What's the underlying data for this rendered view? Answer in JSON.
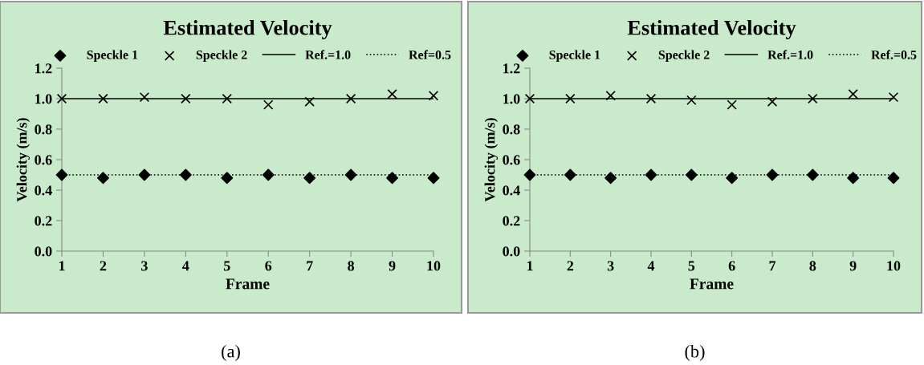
{
  "chart_data": [
    {
      "type": "scatter",
      "title": "Estimated Velocity",
      "xlabel": "Frame",
      "ylabel": "Velocity (m/s)",
      "x": [
        1,
        2,
        3,
        4,
        5,
        6,
        7,
        8,
        9,
        10
      ],
      "xlim": [
        1,
        10
      ],
      "xticks": [
        1,
        2,
        3,
        4,
        5,
        6,
        7,
        8,
        9,
        10
      ],
      "ylim": [
        0,
        1.2
      ],
      "yticks": [
        {
          "value": 0,
          "label": "0.0"
        },
        {
          "value": 0.2,
          "label": "0.2"
        },
        {
          "value": 0.4,
          "label": "0.4"
        },
        {
          "value": 0.6,
          "label": "0.6"
        },
        {
          "value": 0.8,
          "label": "0.8"
        },
        {
          "value": 1.0,
          "label": "1.0"
        },
        {
          "value": 1.2,
          "label": "1.2"
        }
      ],
      "legend": "top",
      "grid": false,
      "annotations": [
        "(a)"
      ],
      "series": [
        {
          "name": "Speckle 1",
          "type": "scatter",
          "marker": "diamond",
          "color": "#000000",
          "values": [
            0.5,
            0.48,
            0.5,
            0.5,
            0.48,
            0.5,
            0.48,
            0.5,
            0.48,
            0.48
          ]
        },
        {
          "name": "Speckle 2",
          "type": "scatter",
          "marker": "cross",
          "color": "#000000",
          "values": [
            1.0,
            1.0,
            1.01,
            1.0,
            1.0,
            0.96,
            0.98,
            1.0,
            1.03,
            1.02
          ]
        },
        {
          "name": "Ref.=1.0",
          "type": "line",
          "marker": "none",
          "line_style": "solid",
          "color": "#000000",
          "values": [
            1.0,
            1.0,
            1.0,
            1.0,
            1.0,
            1.0,
            1.0,
            1.0,
            1.0,
            1.0
          ]
        },
        {
          "name": "Ref=0.5",
          "type": "line",
          "marker": "none",
          "line_style": "dotted",
          "color": "#000000",
          "values": [
            0.5,
            0.5,
            0.5,
            0.5,
            0.5,
            0.5,
            0.5,
            0.5,
            0.5,
            0.5
          ]
        }
      ]
    },
    {
      "type": "scatter",
      "title": "Estimated Velocity",
      "xlabel": "Frame",
      "ylabel": "Velocity (m/s)",
      "x": [
        1,
        2,
        3,
        4,
        5,
        6,
        7,
        8,
        9,
        10
      ],
      "xlim": [
        1,
        10
      ],
      "xticks": [
        1,
        2,
        3,
        4,
        5,
        6,
        7,
        8,
        9,
        10
      ],
      "ylim": [
        0,
        1.2
      ],
      "yticks": [
        {
          "value": 0,
          "label": "0.0"
        },
        {
          "value": 0.2,
          "label": "0.2"
        },
        {
          "value": 0.4,
          "label": "0.4"
        },
        {
          "value": 0.6,
          "label": "0.6"
        },
        {
          "value": 0.8,
          "label": "0.8"
        },
        {
          "value": 1.0,
          "label": "1.0"
        },
        {
          "value": 1.2,
          "label": "1.2"
        }
      ],
      "legend": "top",
      "grid": false,
      "annotations": [
        "(b)"
      ],
      "series": [
        {
          "name": "Speckle 1",
          "type": "scatter",
          "marker": "diamond",
          "color": "#000000",
          "values": [
            0.5,
            0.5,
            0.48,
            0.5,
            0.5,
            0.48,
            0.5,
            0.5,
            0.48,
            0.48
          ]
        },
        {
          "name": "Speckle 2",
          "type": "scatter",
          "marker": "cross",
          "color": "#000000",
          "values": [
            1.0,
            1.0,
            1.02,
            1.0,
            0.99,
            0.96,
            0.98,
            1.0,
            1.03,
            1.01
          ]
        },
        {
          "name": "Ref.=1.0",
          "type": "line",
          "marker": "none",
          "line_style": "solid",
          "color": "#000000",
          "values": [
            1.0,
            1.0,
            1.0,
            1.0,
            1.0,
            1.0,
            1.0,
            1.0,
            1.0,
            1.0
          ]
        },
        {
          "name": "Ref.=0.5",
          "type": "line",
          "marker": "none",
          "line_style": "dotted",
          "color": "#000000",
          "values": [
            0.5,
            0.5,
            0.5,
            0.5,
            0.5,
            0.5,
            0.5,
            0.5,
            0.5,
            0.5
          ]
        }
      ]
    }
  ]
}
